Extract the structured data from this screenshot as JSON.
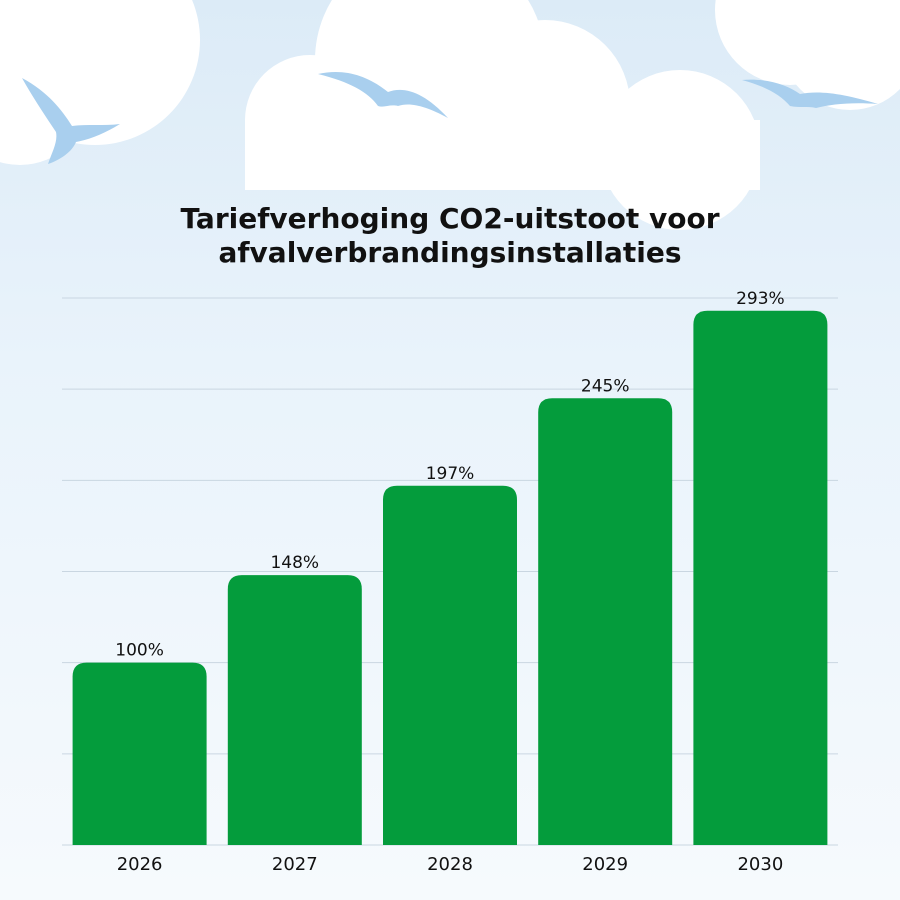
{
  "title_lines": [
    "Tariefverhoging CO2-uitstoot voor",
    "afvalverbrandingsinstallaties"
  ],
  "colors": {
    "bar": "#049c3c",
    "grid": "#c9d6e1",
    "text": "#111111",
    "bird": "#a9cfee",
    "cloud": "#ffffff"
  },
  "chart_data": {
    "type": "bar",
    "title": "Tariefverhoging CO2-uitstoot voor afvalverbrandingsinstallaties",
    "categories": [
      "2026",
      "2027",
      "2028",
      "2029",
      "2030"
    ],
    "values": [
      100,
      148,
      197,
      245,
      293
    ],
    "data_labels": [
      "100%",
      "148%",
      "197%",
      "245%",
      "293%"
    ],
    "xlabel": "",
    "ylabel": "",
    "ylim": [
      0,
      300
    ],
    "grid": true,
    "legend": "none"
  }
}
